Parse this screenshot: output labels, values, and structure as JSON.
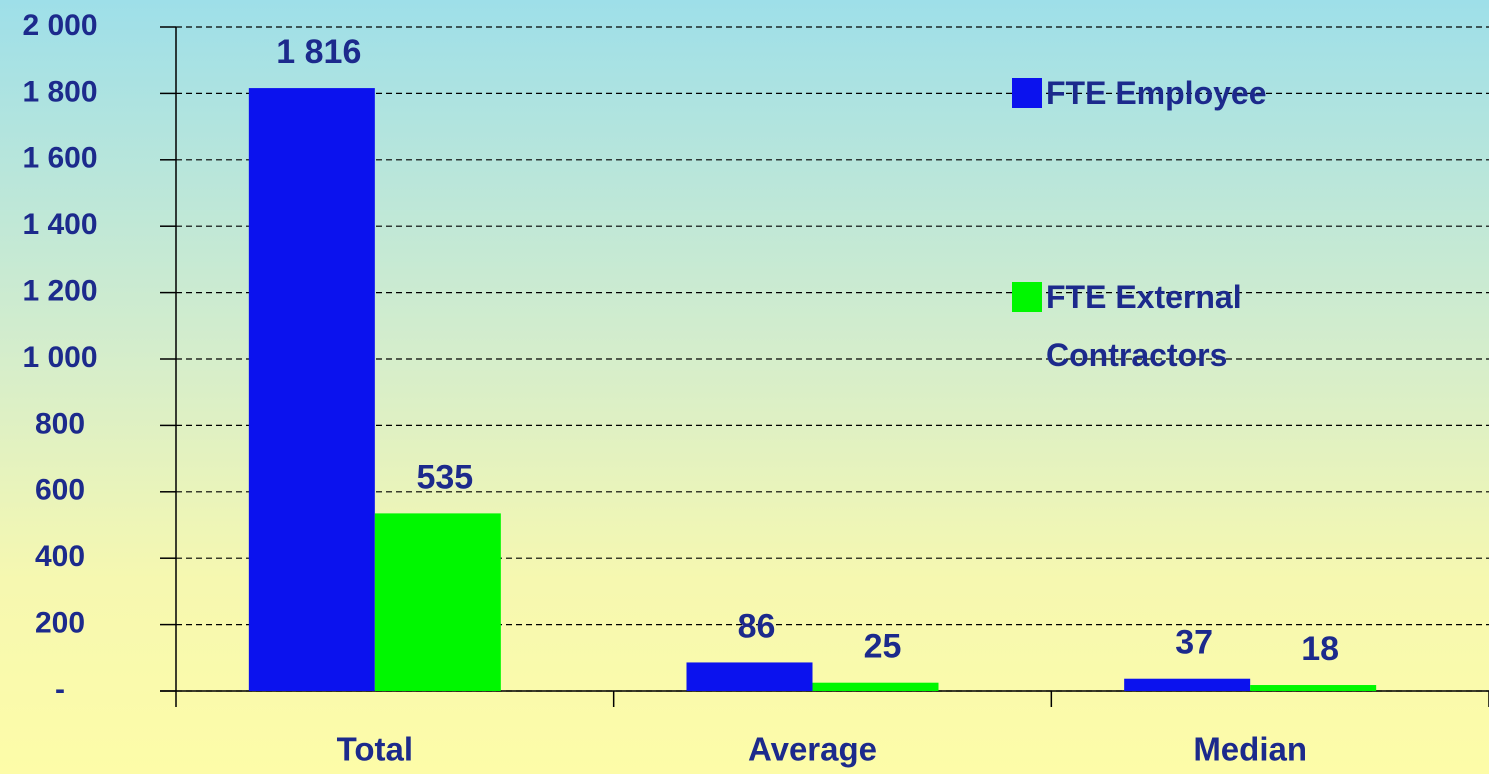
{
  "chart_data": {
    "type": "bar",
    "categories": [
      "Total",
      "Average",
      "Median"
    ],
    "series": [
      {
        "name": "FTE Employee",
        "color": "#0b12ee",
        "values": [
          1816,
          86,
          37
        ],
        "value_labels": [
          "1 816",
          "86",
          "37"
        ]
      },
      {
        "name": "FTE External Contractors",
        "color": "#00f700",
        "values": [
          535,
          25,
          18
        ],
        "value_labels": [
          "535",
          "25",
          "18"
        ]
      }
    ],
    "ylim": [
      0,
      2000
    ],
    "yticks": [
      {
        "value": 0,
        "label": "-"
      },
      200,
      400,
      600,
      800,
      {
        "value": 1000,
        "label": "1 000"
      },
      {
        "value": 1200,
        "label": "1 200"
      },
      {
        "value": 1400,
        "label": "1 400"
      },
      {
        "value": 1600,
        "label": "1 600"
      },
      {
        "value": 1800,
        "label": "1 800"
      },
      {
        "value": 2000,
        "label": "2 000"
      }
    ],
    "grid": true,
    "legend": "right"
  }
}
